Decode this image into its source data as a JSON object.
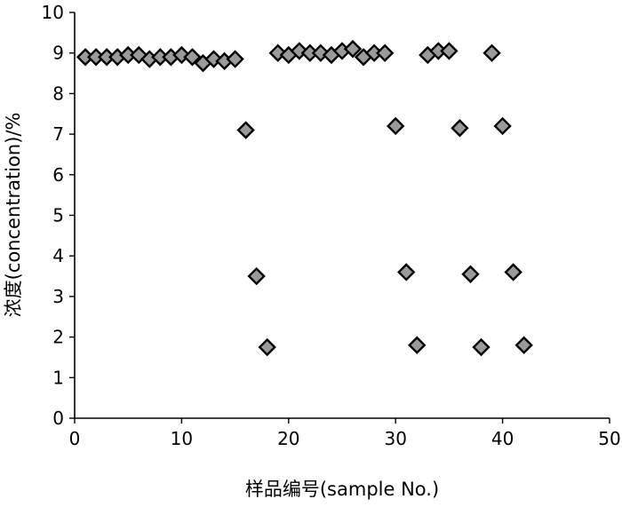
{
  "chart_data": {
    "type": "scatter",
    "title": "",
    "xlabel": "样品编号(sample No.)",
    "ylabel": "浓度(concentration)/%",
    "xlim": [
      0,
      50
    ],
    "ylim": [
      0,
      10
    ],
    "xticks": [
      0,
      10,
      20,
      30,
      40,
      50
    ],
    "yticks": [
      0,
      1,
      2,
      3,
      4,
      5,
      6,
      7,
      8,
      9,
      10
    ],
    "grid": false,
    "legend": "none",
    "marker": "diamond",
    "marker_fill": "#9a9a9a",
    "marker_edge": "#000000",
    "series": [
      {
        "x": [
          1,
          2,
          3,
          4,
          5,
          6,
          7,
          8,
          9,
          10,
          11,
          12,
          13,
          14,
          15,
          16,
          17,
          18,
          19,
          20,
          21,
          22,
          23,
          24,
          25,
          26,
          27,
          28,
          29,
          30,
          31,
          32,
          33,
          34,
          35,
          36,
          37,
          38,
          39,
          40,
          41,
          42
        ],
        "y": [
          8.9,
          8.9,
          8.9,
          8.9,
          8.95,
          8.95,
          8.85,
          8.9,
          8.9,
          8.95,
          8.9,
          8.75,
          8.85,
          8.8,
          8.85,
          7.1,
          3.5,
          1.75,
          9.0,
          8.95,
          9.05,
          9.0,
          9.0,
          8.95,
          9.05,
          9.1,
          8.9,
          9.0,
          9.0,
          7.2,
          3.6,
          1.8,
          8.95,
          9.05,
          9.05,
          7.15,
          3.55,
          1.75,
          9.0,
          7.2,
          3.6,
          1.8
        ]
      }
    ]
  }
}
